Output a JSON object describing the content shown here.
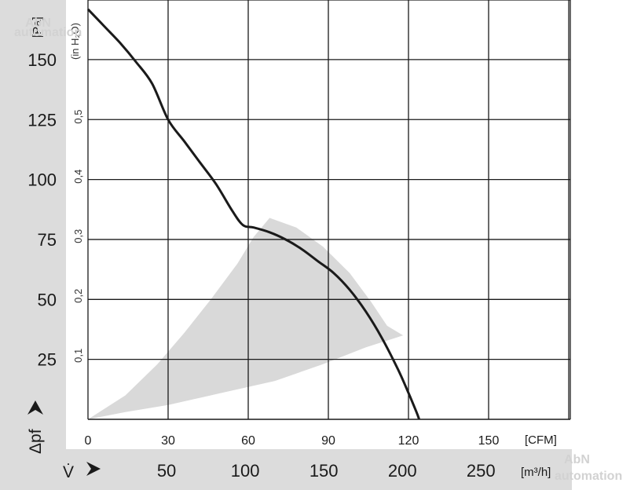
{
  "chart_data": {
    "type": "line",
    "title": "",
    "xlabel_primary": "V̇",
    "xlabel_secondary_unit": "[CFM]",
    "xlabel_unit": "[m³/h]",
    "ylabel": "Δpf",
    "ylabel_unit": "[Pa]",
    "ylabel_secondary_unit": "(in H₂O)",
    "x_cfm_ticks": [
      "0",
      "30",
      "60",
      "90",
      "120",
      "150"
    ],
    "x_m3h_ticks": [
      "50",
      "100",
      "150",
      "200",
      "250"
    ],
    "y_pa_ticks": [
      "25",
      "50",
      "75",
      "100",
      "125",
      "150"
    ],
    "y_inh2o_ticks": [
      "0,1",
      "0,2",
      "0,3",
      "0,4",
      "0,5"
    ],
    "xlim_cfm": [
      0,
      180
    ],
    "ylim_pa": [
      0,
      175
    ],
    "grid": true,
    "watermarks": [
      "AbN",
      "automation"
    ],
    "series": [
      {
        "points_cfm_pa": [
          [
            0,
            171
          ],
          [
            6,
            164
          ],
          [
            12,
            157
          ],
          [
            18,
            149
          ],
          [
            24,
            140
          ],
          [
            30,
            125
          ],
          [
            36,
            116
          ],
          [
            42,
            107
          ],
          [
            48,
            98
          ],
          [
            54,
            87
          ],
          [
            58,
            81
          ],
          [
            62,
            80
          ],
          [
            68,
            78
          ],
          [
            74,
            75
          ],
          [
            80,
            71
          ],
          [
            86,
            66
          ],
          [
            92,
            61
          ],
          [
            98,
            54
          ],
          [
            104,
            45
          ],
          [
            110,
            34
          ],
          [
            116,
            21
          ],
          [
            120,
            11
          ],
          [
            123,
            3
          ],
          [
            124,
            0
          ]
        ]
      }
    ],
    "shaded_region": {
      "upper_cfm_pa": [
        [
          0,
          0
        ],
        [
          14,
          10
        ],
        [
          26,
          23
        ],
        [
          36,
          36
        ],
        [
          46,
          50
        ],
        [
          56,
          65
        ],
        [
          62,
          76
        ],
        [
          68,
          84
        ]
      ],
      "arc_cfm_pa": [
        [
          68,
          84
        ],
        [
          78,
          80
        ],
        [
          88,
          72
        ],
        [
          98,
          61
        ],
        [
          106,
          49
        ],
        [
          112,
          39
        ],
        [
          118,
          35
        ]
      ],
      "lower_cfm_pa": [
        [
          118,
          35
        ],
        [
          104,
          30
        ],
        [
          88,
          23
        ],
        [
          70,
          16
        ],
        [
          50,
          11
        ],
        [
          30,
          6
        ],
        [
          14,
          3
        ],
        [
          0,
          0
        ]
      ],
      "color": "#d9d9d9"
    },
    "colors": {
      "curve": "#1a1a1a",
      "grid": "#1a1a1a",
      "bands": "#dcdcdc",
      "shaded": "#d9d9d9"
    }
  }
}
